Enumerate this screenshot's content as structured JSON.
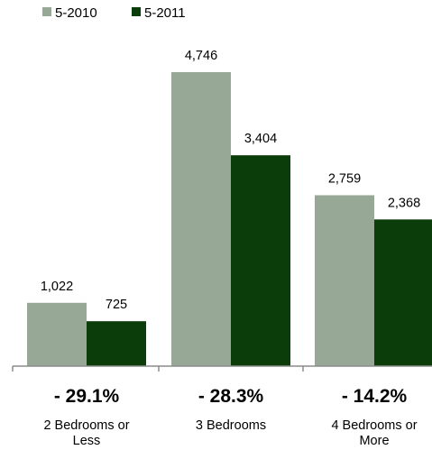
{
  "chart_data": {
    "type": "bar",
    "categories": [
      "2 Bedrooms or Less",
      "3 Bedrooms",
      "4 Bedrooms or More"
    ],
    "category_lines": [
      [
        "2 Bedrooms or",
        "Less"
      ],
      [
        "3 Bedrooms"
      ],
      [
        "4 Bedrooms or",
        "More"
      ]
    ],
    "series": [
      {
        "name": "5-2010",
        "values": [
          1022,
          4746,
          2759
        ],
        "labels": [
          "1,022",
          "4,746",
          "2,759"
        ],
        "color": "#97a897"
      },
      {
        "name": "5-2011",
        "values": [
          725,
          3404,
          2368
        ],
        "labels": [
          "725",
          "3,404",
          "2,368"
        ],
        "color": "#0b3d0b"
      }
    ],
    "percent_change": [
      "- 29.1%",
      "- 28.3%",
      "- 14.2%"
    ],
    "ylim": [
      0,
      5200
    ],
    "grid": false,
    "legend_position": "top-left",
    "title": "",
    "xlabel": "",
    "ylabel": ""
  }
}
